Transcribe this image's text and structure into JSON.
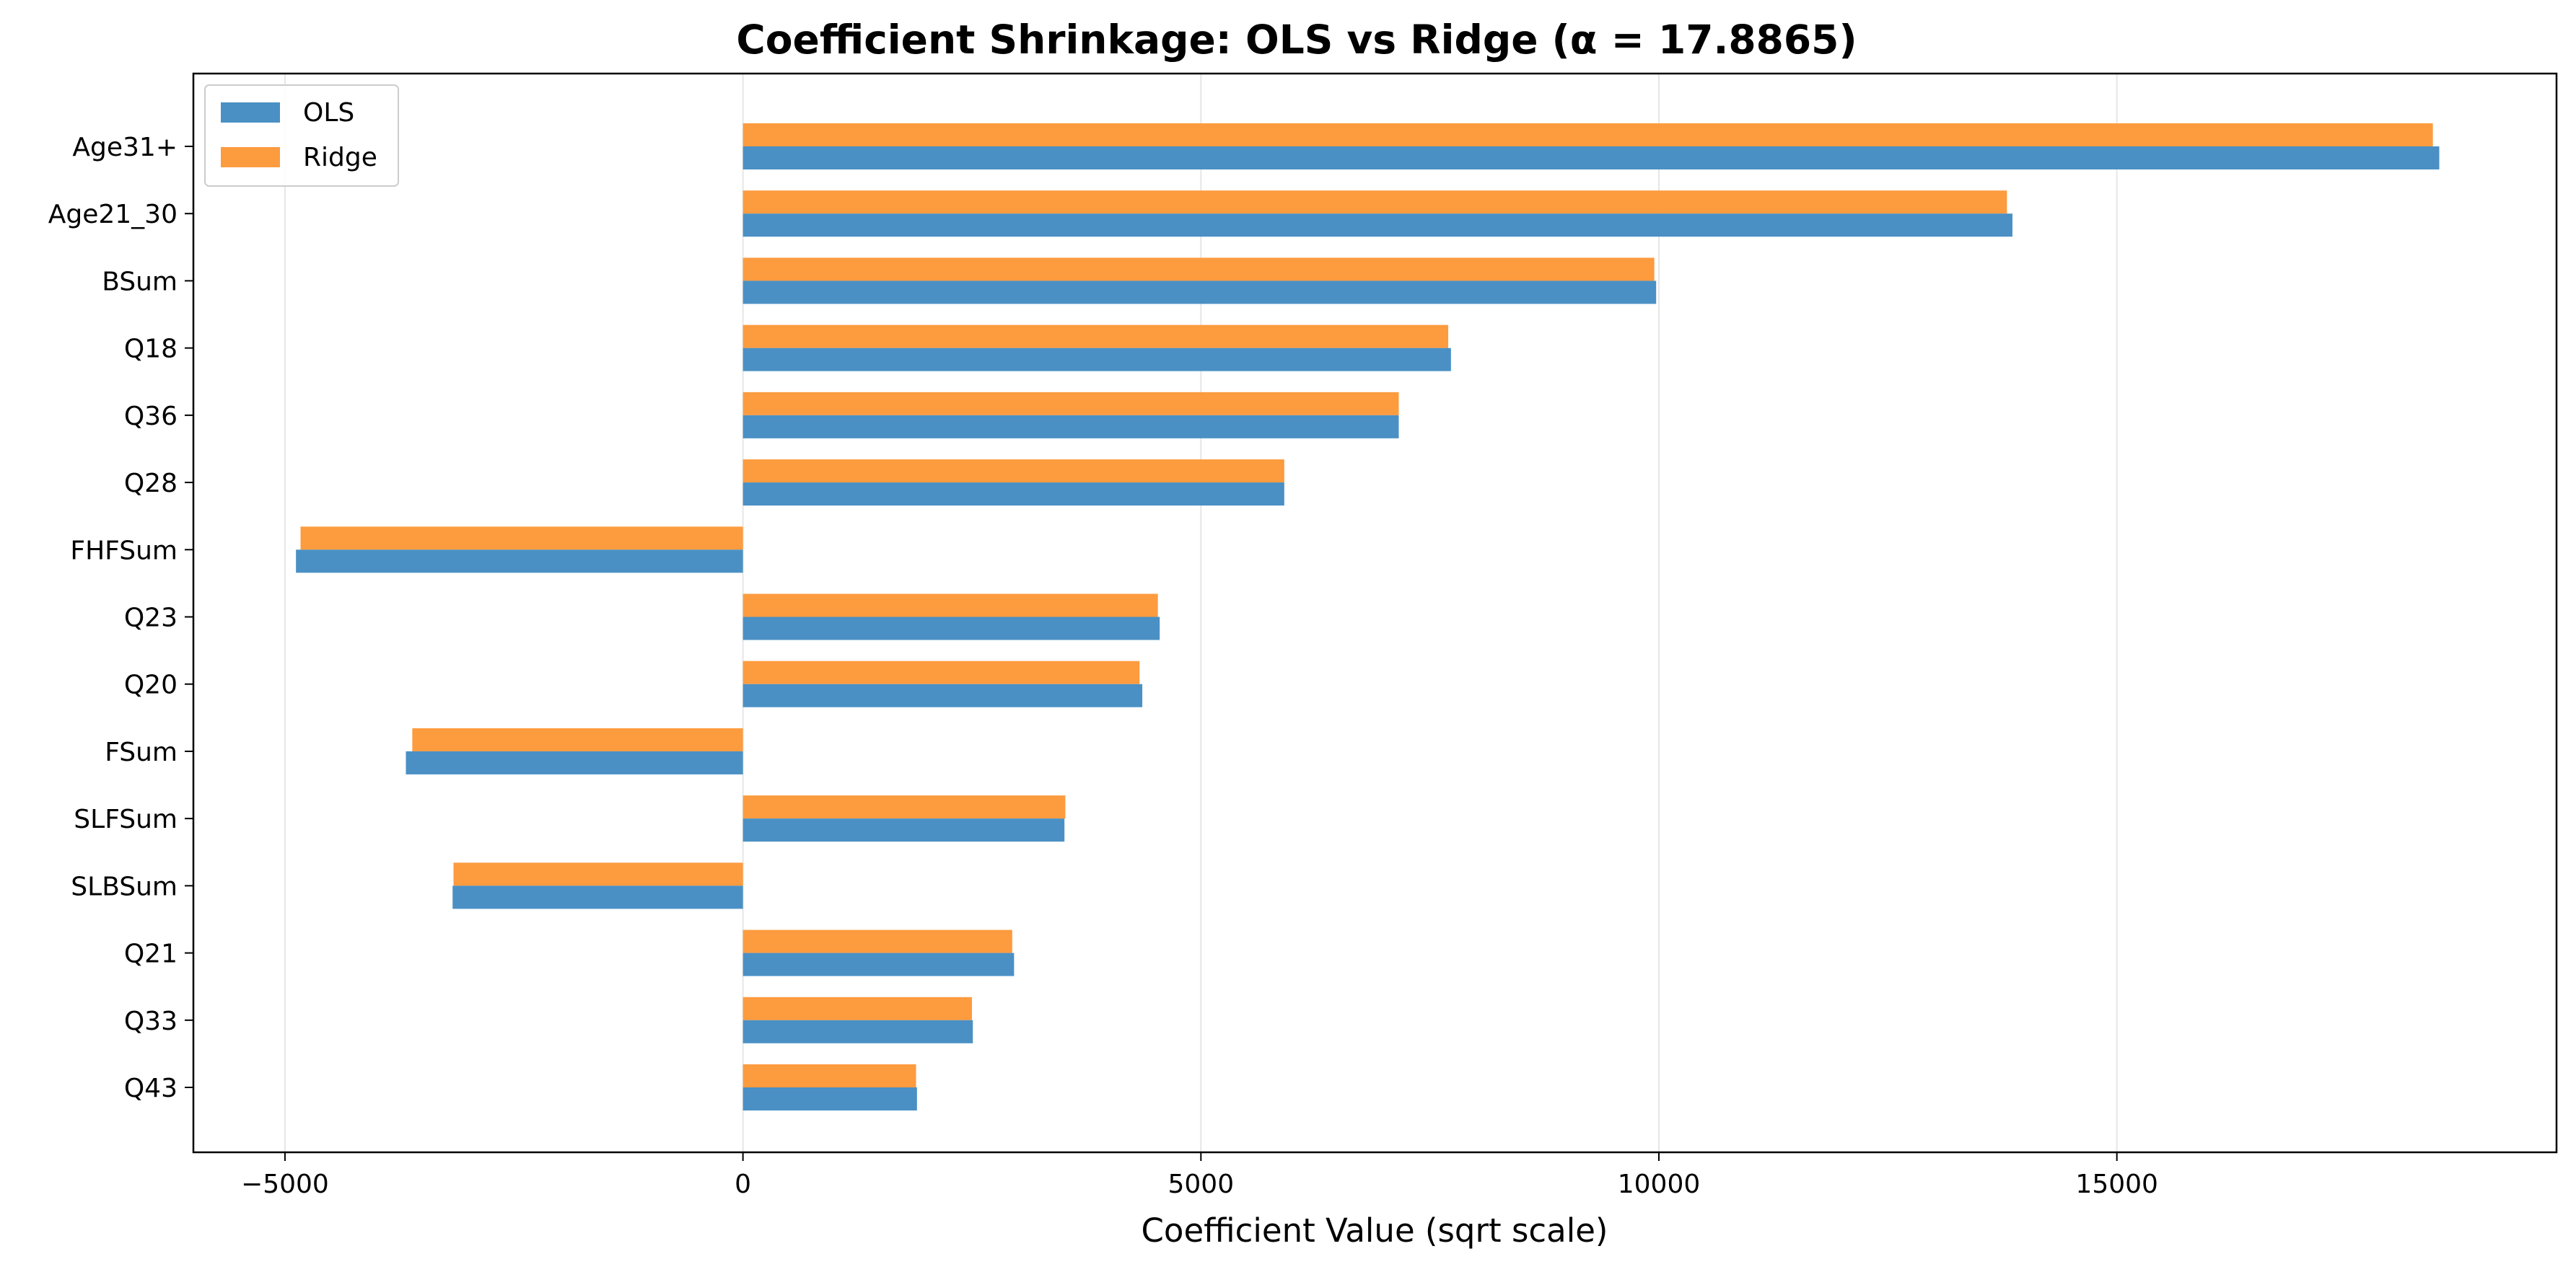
{
  "chart_data": {
    "type": "bar",
    "orientation": "horizontal",
    "title": "Coefficient Shrinkage: OLS vs Ridge (α = 17.8865)",
    "xlabel": "Coefficient Value (sqrt scale)",
    "ylabel": "",
    "xlim": [
      -6000,
      19800
    ],
    "xticks": [
      -5000,
      0,
      5000,
      10000,
      15000
    ],
    "xtick_labels": [
      "−5000",
      "0",
      "5000",
      "10000",
      "15000"
    ],
    "grid": "vertical",
    "legend_position": "upper-left",
    "categories": [
      "Age31+",
      "Age21_30",
      "BSum",
      "Q18",
      "Q36",
      "Q28",
      "FHFSum",
      "Q23",
      "Q20",
      "FSum",
      "SLFSum",
      "SLBSum",
      "Q21",
      "Q33",
      "Q43"
    ],
    "series": [
      {
        "name": "OLS",
        "color": "#4a90c4",
        "values": [
          18520,
          13860,
          9970,
          7730,
          7160,
          5910,
          -4880,
          4550,
          4360,
          -3680,
          3510,
          -3170,
          2960,
          2510,
          1900
        ]
      },
      {
        "name": "Ridge",
        "color": "#fd9b3f",
        "values": [
          18450,
          13800,
          9950,
          7700,
          7160,
          5910,
          -4830,
          4530,
          4330,
          -3610,
          3520,
          -3160,
          2940,
          2500,
          1890
        ]
      }
    ]
  }
}
